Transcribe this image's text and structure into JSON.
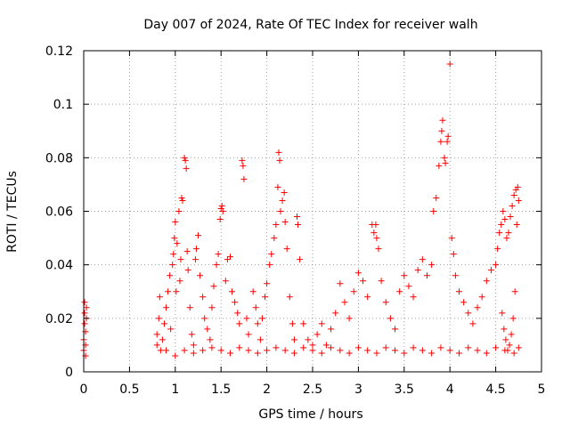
{
  "chart_data": {
    "type": "scatter",
    "title": "Day 007 of 2024, Rate Of TEC Index for receiver walh",
    "xlabel": "GPS time / hours",
    "ylabel": "ROTI / TECUs",
    "xlim": [
      0,
      5
    ],
    "ylim": [
      0,
      0.12
    ],
    "xticks": [
      0,
      0.5,
      1,
      1.5,
      2,
      2.5,
      3,
      3.5,
      4,
      4.5,
      5
    ],
    "xtick_labels": [
      "0",
      "0.5",
      "1",
      "1.5",
      "2",
      "2.5",
      "3",
      "3.5",
      "4",
      "4.5",
      "5"
    ],
    "yticks": [
      0,
      0.02,
      0.04,
      0.06,
      0.08,
      0.1,
      0.12
    ],
    "ytick_labels": [
      "0",
      "0.02",
      "0.04",
      "0.06",
      "0.08",
      "0.1",
      "0.12"
    ],
    "grid": true,
    "marker": "+",
    "marker_color": "#ff0000",
    "series": [
      {
        "name": "ROTI",
        "points": [
          [
            0.0,
            0.008
          ],
          [
            0.0,
            0.012
          ],
          [
            0.01,
            0.018
          ],
          [
            0.01,
            0.022
          ],
          [
            0.01,
            0.026
          ],
          [
            0.02,
            0.015
          ],
          [
            0.02,
            0.01
          ],
          [
            0.03,
            0.02
          ],
          [
            0.03,
            0.024
          ],
          [
            0.02,
            0.006
          ],
          [
            0.8,
            0.01
          ],
          [
            0.8,
            0.014
          ],
          [
            0.82,
            0.02
          ],
          [
            0.83,
            0.028
          ],
          [
            0.84,
            0.008
          ],
          [
            0.86,
            0.012
          ],
          [
            0.88,
            0.018
          ],
          [
            0.9,
            0.024
          ],
          [
            0.92,
            0.03
          ],
          [
            0.94,
            0.036
          ],
          [
            0.95,
            0.016
          ],
          [
            0.97,
            0.04
          ],
          [
            0.98,
            0.044
          ],
          [
            0.99,
            0.05
          ],
          [
            1.0,
            0.056
          ],
          [
            1.01,
            0.03
          ],
          [
            1.02,
            0.048
          ],
          [
            1.04,
            0.06
          ],
          [
            1.05,
            0.034
          ],
          [
            1.06,
            0.042
          ],
          [
            1.07,
            0.065
          ],
          [
            1.08,
            0.064
          ],
          [
            1.1,
            0.08
          ],
          [
            1.11,
            0.079
          ],
          [
            1.12,
            0.076
          ],
          [
            1.13,
            0.045
          ],
          [
            1.14,
            0.038
          ],
          [
            1.16,
            0.024
          ],
          [
            1.18,
            0.014
          ],
          [
            1.2,
            0.01
          ],
          [
            1.22,
            0.042
          ],
          [
            1.23,
            0.046
          ],
          [
            1.25,
            0.051
          ],
          [
            1.27,
            0.036
          ],
          [
            1.3,
            0.028
          ],
          [
            1.32,
            0.02
          ],
          [
            1.35,
            0.016
          ],
          [
            1.38,
            0.012
          ],
          [
            1.4,
            0.024
          ],
          [
            1.42,
            0.032
          ],
          [
            1.45,
            0.04
          ],
          [
            1.47,
            0.044
          ],
          [
            1.49,
            0.057
          ],
          [
            1.5,
            0.061
          ],
          [
            1.51,
            0.062
          ],
          [
            1.52,
            0.06
          ],
          [
            1.55,
            0.034
          ],
          [
            1.57,
            0.042
          ],
          [
            1.6,
            0.043
          ],
          [
            1.62,
            0.03
          ],
          [
            1.65,
            0.026
          ],
          [
            1.68,
            0.022
          ],
          [
            1.7,
            0.018
          ],
          [
            1.73,
            0.079
          ],
          [
            1.74,
            0.077
          ],
          [
            1.75,
            0.072
          ],
          [
            1.78,
            0.02
          ],
          [
            1.8,
            0.014
          ],
          [
            1.85,
            0.03
          ],
          [
            1.88,
            0.024
          ],
          [
            1.9,
            0.018
          ],
          [
            1.93,
            0.012
          ],
          [
            1.95,
            0.02
          ],
          [
            1.98,
            0.028
          ],
          [
            2.0,
            0.033
          ],
          [
            2.03,
            0.04
          ],
          [
            2.05,
            0.044
          ],
          [
            2.08,
            0.05
          ],
          [
            2.1,
            0.055
          ],
          [
            2.12,
            0.069
          ],
          [
            2.13,
            0.082
          ],
          [
            2.14,
            0.079
          ],
          [
            2.15,
            0.06
          ],
          [
            2.17,
            0.064
          ],
          [
            2.19,
            0.067
          ],
          [
            2.2,
            0.056
          ],
          [
            2.22,
            0.046
          ],
          [
            2.25,
            0.028
          ],
          [
            2.28,
            0.018
          ],
          [
            2.3,
            0.012
          ],
          [
            2.33,
            0.058
          ],
          [
            2.34,
            0.055
          ],
          [
            2.36,
            0.042
          ],
          [
            2.4,
            0.018
          ],
          [
            2.45,
            0.012
          ],
          [
            2.5,
            0.01
          ],
          [
            2.55,
            0.014
          ],
          [
            2.6,
            0.018
          ],
          [
            2.65,
            0.01
          ],
          [
            2.7,
            0.016
          ],
          [
            2.75,
            0.022
          ],
          [
            2.8,
            0.033
          ],
          [
            2.85,
            0.026
          ],
          [
            2.9,
            0.02
          ],
          [
            2.95,
            0.03
          ],
          [
            3.0,
            0.037
          ],
          [
            3.05,
            0.034
          ],
          [
            3.1,
            0.028
          ],
          [
            3.15,
            0.055
          ],
          [
            3.17,
            0.052
          ],
          [
            3.19,
            0.055
          ],
          [
            3.2,
            0.05
          ],
          [
            3.22,
            0.046
          ],
          [
            3.25,
            0.034
          ],
          [
            3.3,
            0.026
          ],
          [
            3.35,
            0.02
          ],
          [
            3.4,
            0.016
          ],
          [
            3.45,
            0.03
          ],
          [
            3.5,
            0.036
          ],
          [
            3.55,
            0.032
          ],
          [
            3.6,
            0.028
          ],
          [
            3.65,
            0.038
          ],
          [
            3.7,
            0.042
          ],
          [
            3.75,
            0.036
          ],
          [
            3.8,
            0.04
          ],
          [
            3.82,
            0.06
          ],
          [
            3.85,
            0.065
          ],
          [
            3.88,
            0.077
          ],
          [
            3.9,
            0.086
          ],
          [
            3.91,
            0.09
          ],
          [
            3.92,
            0.094
          ],
          [
            3.94,
            0.08
          ],
          [
            3.95,
            0.078
          ],
          [
            3.97,
            0.086
          ],
          [
            3.98,
            0.088
          ],
          [
            4.0,
            0.115
          ],
          [
            4.02,
            0.05
          ],
          [
            4.04,
            0.044
          ],
          [
            4.06,
            0.036
          ],
          [
            4.1,
            0.03
          ],
          [
            4.15,
            0.026
          ],
          [
            4.2,
            0.022
          ],
          [
            4.25,
            0.018
          ],
          [
            4.3,
            0.024
          ],
          [
            4.35,
            0.028
          ],
          [
            4.4,
            0.034
          ],
          [
            4.45,
            0.038
          ],
          [
            4.5,
            0.04
          ],
          [
            4.52,
            0.046
          ],
          [
            4.54,
            0.052
          ],
          [
            4.56,
            0.055
          ],
          [
            4.58,
            0.06
          ],
          [
            4.6,
            0.057
          ],
          [
            4.62,
            0.05
          ],
          [
            4.64,
            0.052
          ],
          [
            4.66,
            0.058
          ],
          [
            4.68,
            0.062
          ],
          [
            4.7,
            0.066
          ],
          [
            4.72,
            0.068
          ],
          [
            4.74,
            0.069
          ],
          [
            4.75,
            0.064
          ],
          [
            4.73,
            0.055
          ],
          [
            4.71,
            0.03
          ],
          [
            4.69,
            0.02
          ],
          [
            4.67,
            0.014
          ],
          [
            4.65,
            0.01
          ],
          [
            4.63,
            0.008
          ],
          [
            4.61,
            0.012
          ],
          [
            4.59,
            0.016
          ],
          [
            4.57,
            0.022
          ],
          [
            0.9,
            0.008
          ],
          [
            1.0,
            0.006
          ],
          [
            1.1,
            0.008
          ],
          [
            1.2,
            0.007
          ],
          [
            1.3,
            0.008
          ],
          [
            1.4,
            0.009
          ],
          [
            1.5,
            0.008
          ],
          [
            1.6,
            0.007
          ],
          [
            1.7,
            0.009
          ],
          [
            1.8,
            0.008
          ],
          [
            1.9,
            0.007
          ],
          [
            2.0,
            0.008
          ],
          [
            2.1,
            0.009
          ],
          [
            2.2,
            0.008
          ],
          [
            2.3,
            0.007
          ],
          [
            2.4,
            0.009
          ],
          [
            2.5,
            0.008
          ],
          [
            2.6,
            0.007
          ],
          [
            2.7,
            0.009
          ],
          [
            2.8,
            0.008
          ],
          [
            2.9,
            0.007
          ],
          [
            3.0,
            0.009
          ],
          [
            3.1,
            0.008
          ],
          [
            3.2,
            0.007
          ],
          [
            3.3,
            0.009
          ],
          [
            3.4,
            0.008
          ],
          [
            3.5,
            0.007
          ],
          [
            3.6,
            0.009
          ],
          [
            3.7,
            0.008
          ],
          [
            3.8,
            0.007
          ],
          [
            3.9,
            0.009
          ],
          [
            4.0,
            0.008
          ],
          [
            4.1,
            0.007
          ],
          [
            4.2,
            0.009
          ],
          [
            4.3,
            0.008
          ],
          [
            4.4,
            0.007
          ],
          [
            4.5,
            0.009
          ],
          [
            4.6,
            0.008
          ],
          [
            4.7,
            0.007
          ],
          [
            4.75,
            0.009
          ]
        ]
      }
    ]
  }
}
